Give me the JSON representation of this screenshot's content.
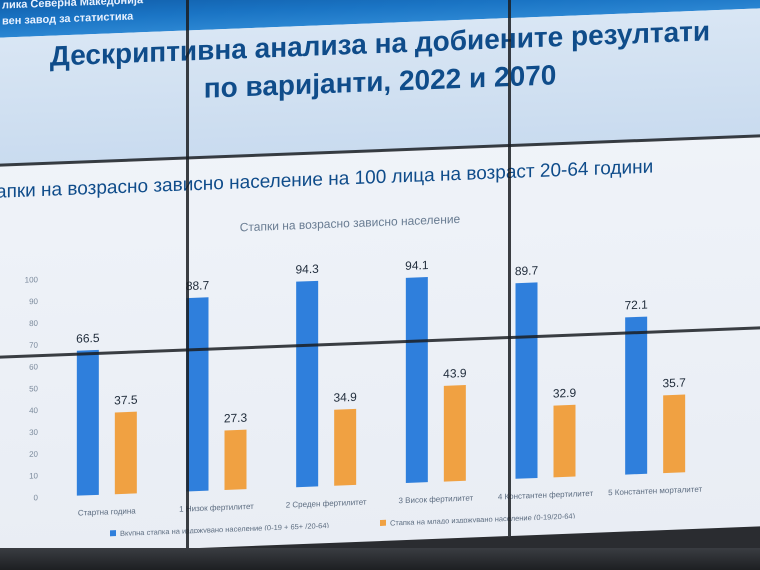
{
  "header": {
    "org_line1": "лика Северна Македонија",
    "org_line2": "вен завод за статистика"
  },
  "slide": {
    "title_line1": "Дескриптивна анализа на добиените резултати",
    "title_line2": "по варијанти, 2022 и 2070",
    "subtitle": "апки на возрасно зависно население на 100 лица на возраст 20-64 години"
  },
  "colors": {
    "series_total": "#2f7fdc",
    "series_young": "#f0a142"
  },
  "chart_data": {
    "type": "bar",
    "title": "Стапки на возрасно зависно население",
    "categories": [
      "Стартна година",
      "1  Низок фертилитет",
      "2  Среден фертилитет",
      "3  Висок фертилитет",
      "4  Константен фертилитет",
      "5  Константен морталитет"
    ],
    "series": [
      {
        "name": "Вкупна стапка на издржувано население  (0-19 + 65+ /20-64)",
        "values": [
          66.5,
          88.7,
          94.3,
          94.1,
          89.7,
          72.1
        ]
      },
      {
        "name": "Стапка на младо издржувано население (0-19/20-64)",
        "values": [
          37.5,
          27.3,
          34.9,
          43.9,
          32.9,
          35.7
        ]
      }
    ],
    "yticks": [
      0,
      10,
      20,
      30,
      40,
      50,
      60,
      70,
      80,
      90,
      100
    ],
    "ylim": [
      0,
      100
    ],
    "legend": "bottom",
    "grid": false
  }
}
